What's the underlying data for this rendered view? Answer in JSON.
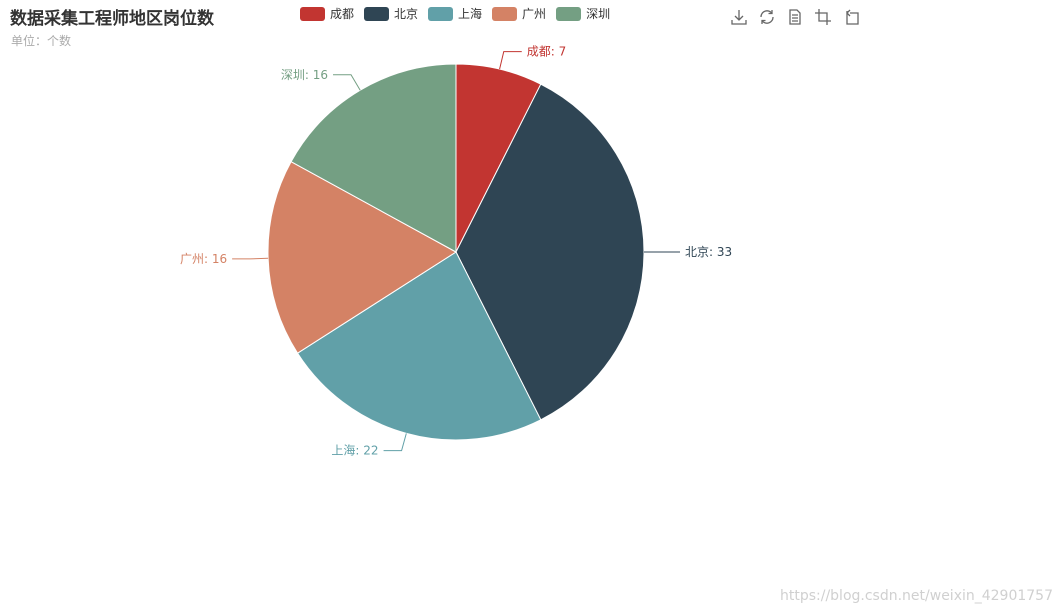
{
  "title": "数据采集工程师地区岗位数",
  "subtitle": "单位：个数",
  "toolbox": {
    "icons": [
      "download-icon",
      "refresh-icon",
      "data-view-icon",
      "zoom-icon",
      "restore-icon"
    ]
  },
  "watermark": "https://blog.csdn.net/weixin_42901757",
  "chart_data": {
    "type": "pie",
    "title": "数据采集工程师地区岗位数",
    "subtitle": "单位：个数",
    "legend_position": "top",
    "series": [
      {
        "name": "成都",
        "value": 7,
        "color": "#c23531",
        "label": "成都: 7"
      },
      {
        "name": "北京",
        "value": 33,
        "color": "#2f4554",
        "label": "北京: 33"
      },
      {
        "name": "上海",
        "value": 22,
        "color": "#61a0a8",
        "label": "上海: 22"
      },
      {
        "name": "广州",
        "value": 16,
        "color": "#d48265",
        "label": "广州: 16"
      },
      {
        "name": "深圳",
        "value": 16,
        "color": "#749f83",
        "label": "深圳: 16"
      }
    ]
  }
}
